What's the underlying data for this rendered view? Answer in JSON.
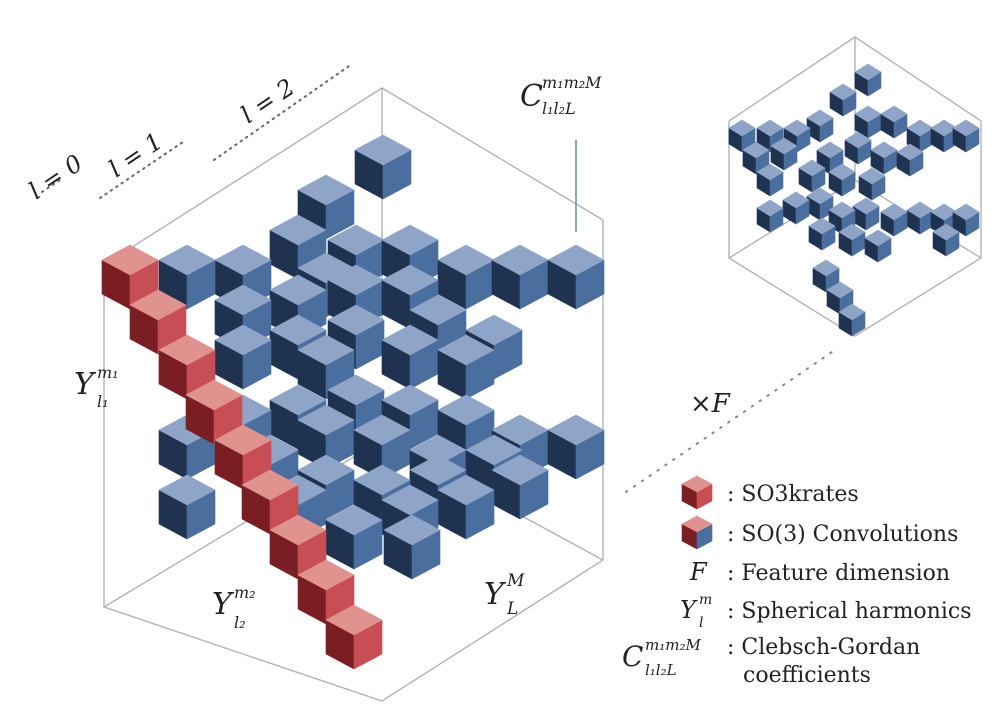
{
  "degree_labels": [
    "l = 0",
    "l = 1",
    "l = 2"
  ],
  "cg_symbol": {
    "base": "C",
    "sup": "m₁m₂M",
    "sub": "l₁l₂L"
  },
  "axis_labels": {
    "left": {
      "base": "Y",
      "sup": "m₁",
      "sub": "l₁"
    },
    "bottom": {
      "base": "Y",
      "sup": "m₂",
      "sub": "l₂"
    },
    "right": {
      "base": "Y",
      "sup": "M",
      "sub": "L"
    }
  },
  "multiplier": "×F",
  "legend": [
    {
      "icon": "red-cube",
      "text": ": SO3krates"
    },
    {
      "icon": "split-cube",
      "text": ": SO(3) Convolutions"
    },
    {
      "symbol": "F",
      "text": ": Feature dimension"
    },
    {
      "symbol": {
        "base": "Y",
        "sup": "m",
        "sub": "l"
      },
      "text": ": Spherical harmonics"
    },
    {
      "symbol": {
        "base": "C",
        "sup": "m₁m₂M",
        "sub": "l₁l₂L"
      },
      "text": ": Clebsch-Gordan",
      "text2": "coefficients"
    }
  ],
  "colors": {
    "blue_top": "#8fa5c7",
    "blue_left": "#1f3350",
    "blue_right": "#4a6e9e",
    "red_top": "#e0928f",
    "red_left": "#7a1e24",
    "red_right": "#c74e54",
    "edge": "#b3b3b3"
  }
}
